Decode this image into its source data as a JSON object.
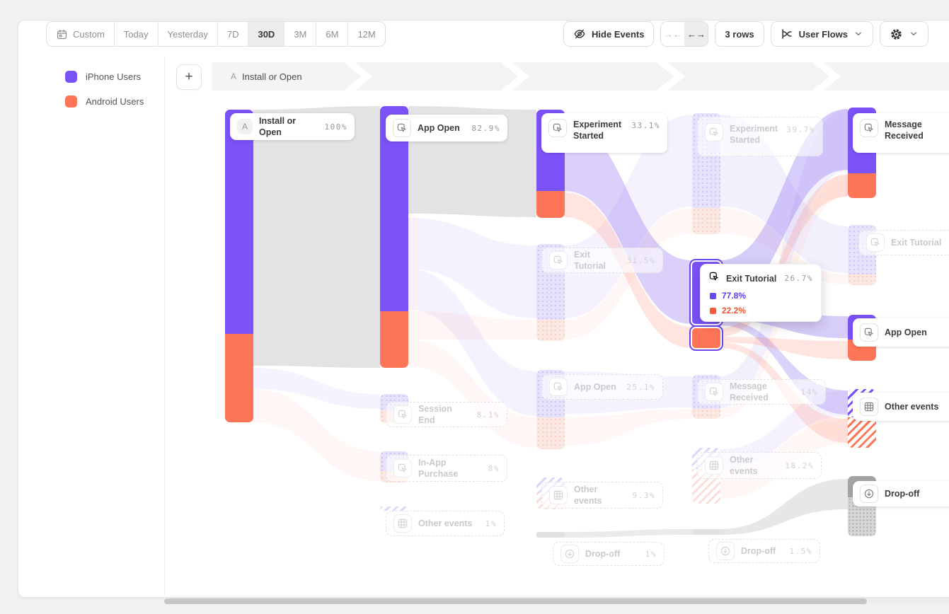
{
  "toolbar": {
    "date_ranges": [
      "Custom",
      "Today",
      "Yesterday",
      "7D",
      "30D",
      "3M",
      "6M",
      "12M"
    ],
    "selected_range": "30D",
    "hide_events_label": "Hide Events",
    "rows_label": "3 rows",
    "view_label": "User Flows"
  },
  "legend": {
    "items": [
      {
        "label": "iPhone Users",
        "color": "#7b52f7"
      },
      {
        "label": "Android Users",
        "color": "#ff7557"
      }
    ]
  },
  "breadcrumb": {
    "step_badge": "A",
    "step_label": "Install or Open"
  },
  "colors": {
    "purple": "#7b52f7",
    "orange": "#ff7557",
    "highlight_outline": "#6847f2",
    "gray_flow": "#e3e3e5"
  },
  "flows": {
    "columns": [
      {
        "nodes": [
          {
            "badge": "A",
            "label": "Install or Open",
            "pct": "100%",
            "state": "active"
          }
        ]
      },
      {
        "nodes": [
          {
            "label": "App Open",
            "pct": "82.9%",
            "state": "active"
          },
          {
            "label": "Session End",
            "pct": "8.1%",
            "state": "faded"
          },
          {
            "label": "In-App Purchase",
            "pct": "8%",
            "state": "faded"
          },
          {
            "label": "Other events",
            "pct": "1%",
            "state": "faded"
          }
        ]
      },
      {
        "nodes": [
          {
            "label": "Experiment Started",
            "pct": "33.1%",
            "state": "active"
          },
          {
            "label": "Exit Tutorial",
            "pct": "31.5%",
            "state": "faded"
          },
          {
            "label": "App Open",
            "pct": "25.1%",
            "state": "faded"
          },
          {
            "label": "Other events",
            "pct": "9.3%",
            "state": "faded"
          },
          {
            "label": "Drop-off",
            "pct": "1%",
            "state": "faded"
          }
        ]
      },
      {
        "nodes": [
          {
            "label": "Experiment Started",
            "pct": "39.7%",
            "state": "faded"
          },
          {
            "label": "Exit Tutorial",
            "pct": "26.7%",
            "state": "hovered",
            "tooltip": {
              "purple_pct": "77.8%",
              "orange_pct": "22.2%"
            }
          },
          {
            "label": "Message Received",
            "pct": "14%",
            "state": "faded"
          },
          {
            "label": "Other events",
            "pct": "18.2%",
            "state": "faded"
          },
          {
            "label": "Drop-off",
            "pct": "1.5%",
            "state": "faded"
          }
        ]
      },
      {
        "nodes": [
          {
            "label": "Message Received",
            "state": "active"
          },
          {
            "label": "Exit Tutorial",
            "state": "faded"
          },
          {
            "label": "App Open",
            "state": "active"
          },
          {
            "label": "Other events",
            "state": "active"
          },
          {
            "label": "Drop-off",
            "state": "active"
          }
        ]
      }
    ]
  }
}
